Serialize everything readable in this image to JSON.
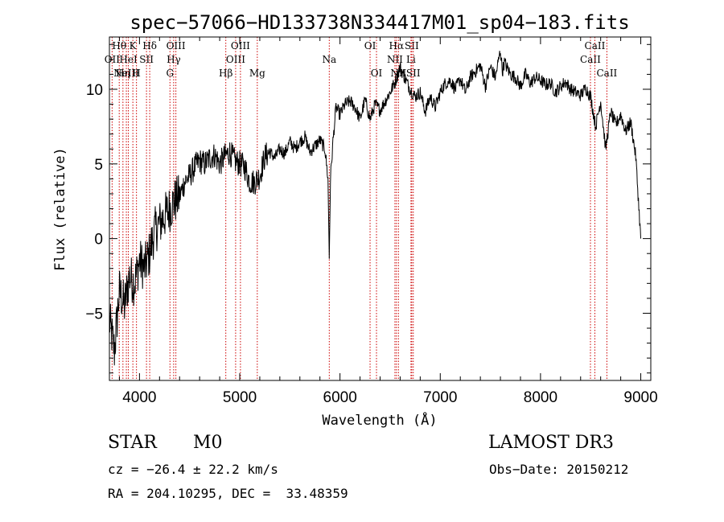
{
  "chart_data": {
    "type": "line",
    "title": "spec−57066−HD133738N334417M01_sp04−183.fits",
    "xlabel": "Wavelength (Å)",
    "ylabel": "Flux (relative)",
    "xlim": [
      3700,
      9100
    ],
    "ylim": [
      -9.5,
      13.5
    ],
    "xticks": [
      4000,
      5000,
      6000,
      7000,
      8000,
      9000
    ],
    "yticks": [
      -5,
      0,
      5,
      10
    ],
    "series": [
      {
        "name": "spectrum",
        "x": [
          3700,
          3750,
          3800,
          3850,
          3900,
          3950,
          4000,
          4050,
          4100,
          4150,
          4200,
          4250,
          4300,
          4350,
          4400,
          4450,
          4500,
          4550,
          4600,
          4650,
          4700,
          4750,
          4800,
          4850,
          4900,
          4950,
          5000,
          5050,
          5100,
          5150,
          5200,
          5250,
          5300,
          5350,
          5400,
          5450,
          5500,
          5550,
          5600,
          5650,
          5700,
          5750,
          5800,
          5850,
          5880,
          5893,
          5905,
          5930,
          5960,
          6000,
          6050,
          6100,
          6150,
          6200,
          6250,
          6300,
          6350,
          6400,
          6450,
          6500,
          6550,
          6600,
          6650,
          6700,
          6750,
          6800,
          6850,
          6900,
          6950,
          7000,
          7050,
          7100,
          7150,
          7200,
          7250,
          7300,
          7350,
          7400,
          7450,
          7500,
          7550,
          7600,
          7620,
          7640,
          7700,
          7750,
          7800,
          7850,
          7900,
          7950,
          8000,
          8050,
          8100,
          8150,
          8200,
          8250,
          8300,
          8350,
          8400,
          8450,
          8500,
          8550,
          8600,
          8650,
          8700,
          8750,
          8800,
          8850,
          8900,
          8950,
          9000
        ],
        "values": [
          -5.5,
          -7.5,
          -3.5,
          -4.5,
          -2.5,
          -3.0,
          -1.5,
          -2.0,
          -1.0,
          0.5,
          1.0,
          1.5,
          2.0,
          2.5,
          2.8,
          3.8,
          4.2,
          4.8,
          5.2,
          5.0,
          5.4,
          5.6,
          5.0,
          5.5,
          5.8,
          5.2,
          5.0,
          4.8,
          3.8,
          3.8,
          4.2,
          5.5,
          5.8,
          5.4,
          6.0,
          5.7,
          6.5,
          6.0,
          6.5,
          6.8,
          5.8,
          6.2,
          6.6,
          6.0,
          4.0,
          -1.3,
          4.0,
          6.5,
          8.8,
          8.3,
          9.0,
          9.2,
          8.8,
          8.0,
          9.3,
          8.0,
          9.0,
          8.6,
          9.2,
          9.8,
          10.5,
          11.5,
          10.7,
          10.0,
          9.5,
          9.8,
          8.5,
          9.5,
          8.8,
          9.8,
          10.4,
          10.6,
          10.0,
          10.7,
          9.8,
          10.8,
          11.2,
          11.6,
          10.2,
          11.5,
          10.8,
          12.6,
          11.2,
          11.8,
          11.0,
          10.8,
          10.2,
          11.0,
          10.4,
          10.8,
          10.6,
          10.3,
          10.4,
          9.8,
          10.2,
          10.5,
          10.0,
          9.8,
          9.6,
          10.1,
          9.5,
          7.5,
          9.2,
          6.0,
          8.5,
          7.6,
          8.3,
          7.2,
          7.8,
          5.5,
          0.0
        ]
      }
    ],
    "line_markers": [
      {
        "wl": 3727,
        "label": "OII",
        "row": 2
      },
      {
        "wl": 3798,
        "label": "Hθ",
        "row": 1
      },
      {
        "wl": 3835,
        "label": "Hη",
        "row": 3
      },
      {
        "wl": 3869,
        "label": "NeIII",
        "row": 3
      },
      {
        "wl": 3889,
        "label": "HeI",
        "row": 2
      },
      {
        "wl": 3934,
        "label": "K",
        "row": 1
      },
      {
        "wl": 3970,
        "label": "H",
        "row": 3
      },
      {
        "wl": 4070,
        "label": "SII",
        "row": 2
      },
      {
        "wl": 4102,
        "label": "Hδ",
        "row": 1
      },
      {
        "wl": 4304,
        "label": "G",
        "row": 3
      },
      {
        "wl": 4341,
        "label": "Hγ",
        "row": 2
      },
      {
        "wl": 4363,
        "label": "OIII",
        "row": 1
      },
      {
        "wl": 4861,
        "label": "Hβ",
        "row": 3
      },
      {
        "wl": 4959,
        "label": "OIII",
        "row": 2
      },
      {
        "wl": 5007,
        "label": "OIII",
        "row": 1
      },
      {
        "wl": 5175,
        "label": "Mg",
        "row": 3
      },
      {
        "wl": 5893,
        "label": "Na",
        "row": 2
      },
      {
        "wl": 6300,
        "label": "OI",
        "row": 1
      },
      {
        "wl": 6364,
        "label": "OI",
        "row": 3
      },
      {
        "wl": 6548,
        "label": "NII",
        "row": 2
      },
      {
        "wl": 6563,
        "label": "Hα",
        "row": 1
      },
      {
        "wl": 6583,
        "label": "NII",
        "row": 3
      },
      {
        "wl": 6708,
        "label": "Li",
        "row": 2
      },
      {
        "wl": 6716,
        "label": "SII",
        "row": 1
      },
      {
        "wl": 6731,
        "label": "SII",
        "row": 3
      },
      {
        "wl": 8498,
        "label": "CaII",
        "row": 2
      },
      {
        "wl": 8542,
        "label": "CaII",
        "row": 1
      },
      {
        "wl": 8662,
        "label": "CaII",
        "row": 3
      }
    ],
    "line_color": "#000000",
    "marker_color": "#cc0000"
  },
  "info": {
    "class": "STAR",
    "subclass": "M0",
    "survey": "LAMOST DR3",
    "cz": "cz = −26.4 ± 22.2 km/s",
    "obsdate": "Obs−Date: 20150212",
    "coords": "RA = 204.10295, DEC =  33.48359"
  }
}
